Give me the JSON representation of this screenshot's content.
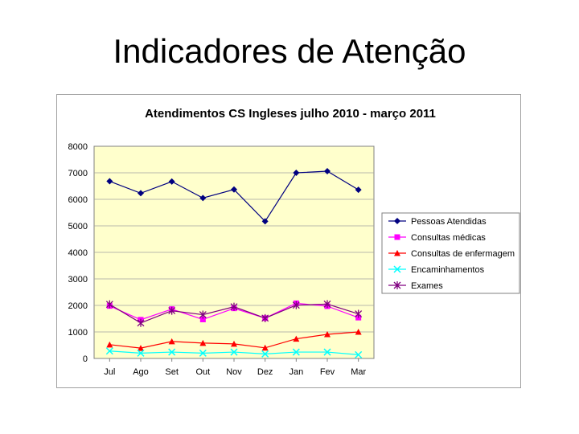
{
  "slide": {
    "title": "Indicadores de Atenção"
  },
  "chart_data": {
    "type": "line",
    "title": "Atendimentos CS Ingleses julho 2010 - março 2011",
    "xlabel": "",
    "ylabel": "",
    "categories": [
      "Jul",
      "Ago",
      "Set",
      "Out",
      "Nov",
      "Dez",
      "Jan",
      "Fev",
      "Mar"
    ],
    "ylim": [
      0,
      8000
    ],
    "yticks": [
      0,
      1000,
      2000,
      3000,
      4000,
      5000,
      6000,
      7000,
      8000
    ],
    "grid": "horizontal",
    "legend": "right",
    "plot_background": "#ffffcc",
    "series": [
      {
        "name": "Pessoas Atendidas",
        "color": "#000080",
        "marker": "diamond",
        "values": [
          6680,
          6230,
          6670,
          6050,
          6370,
          5170,
          7000,
          7060,
          6360
        ]
      },
      {
        "name": "Consultas médicas",
        "color": "#ff00ff",
        "marker": "square",
        "values": [
          1980,
          1460,
          1860,
          1470,
          1890,
          1520,
          2080,
          1970,
          1540
        ]
      },
      {
        "name": "Consultas de enfermagem",
        "color": "#ff0000",
        "marker": "triangle",
        "values": [
          520,
          390,
          640,
          580,
          550,
          400,
          740,
          910,
          1000
        ]
      },
      {
        "name": "Encaminhamentos",
        "color": "#00ffff",
        "marker": "x",
        "values": [
          280,
          200,
          240,
          200,
          240,
          170,
          240,
          240,
          140
        ]
      },
      {
        "name": "Exames",
        "color": "#800080",
        "marker": "star",
        "values": [
          2040,
          1340,
          1800,
          1650,
          1950,
          1520,
          2010,
          2050,
          1680
        ]
      }
    ]
  }
}
